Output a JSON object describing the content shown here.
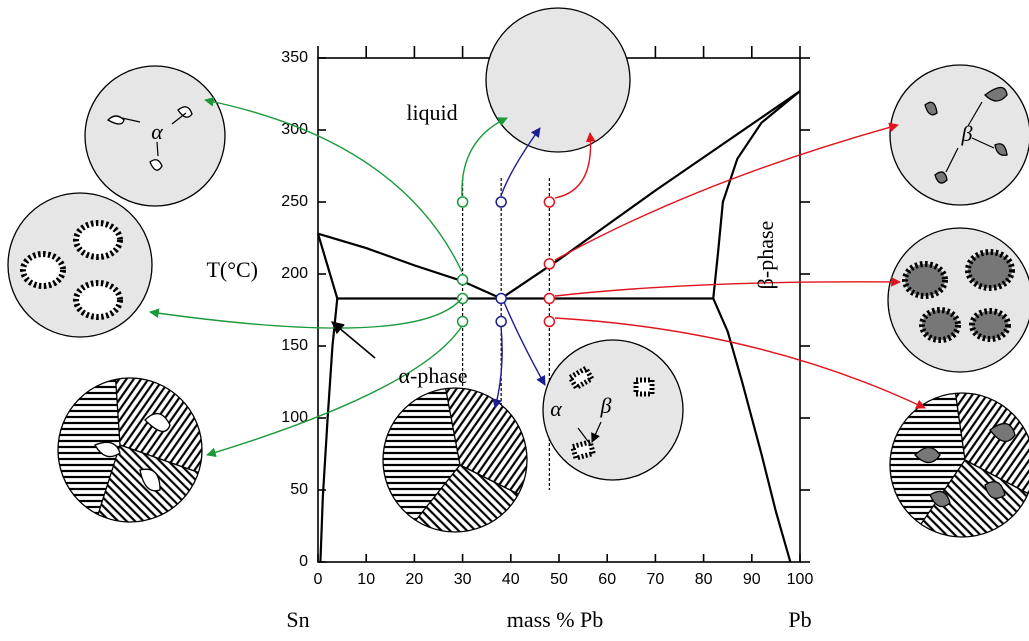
{
  "chart_data": {
    "type": "line",
    "xlim": [
      0,
      100
    ],
    "ylim": [
      0,
      350
    ],
    "xticks": [
      0,
      10,
      20,
      30,
      40,
      50,
      60,
      70,
      80,
      90,
      100
    ],
    "yticks": [
      0,
      50,
      100,
      150,
      200,
      250,
      300,
      350
    ],
    "y_label": "T(°C)",
    "x_label": "mass % Pb",
    "x_left_label": "Sn",
    "x_right_label": "Pb",
    "series": [
      {
        "color": "#000",
        "x": [
          0,
          10,
          20,
          30,
          38
        ],
        "values": [
          228,
          218,
          206,
          195,
          183
        ]
      },
      {
        "color": "#000",
        "x": [
          38,
          50,
          60,
          70,
          80,
          90,
          100
        ],
        "values": [
          183,
          210,
          234,
          258,
          281,
          304,
          327
        ]
      },
      {
        "color": "#000",
        "x": [
          100,
          92,
          87,
          84,
          83,
          82
        ],
        "values": [
          327,
          305,
          280,
          250,
          215,
          183
        ]
      },
      {
        "color": "#000",
        "x": [
          82,
          85,
          88,
          92,
          95,
          98
        ],
        "values": [
          183,
          160,
          125,
          75,
          35,
          0
        ]
      },
      {
        "color": "#000",
        "x": [
          0,
          4
        ],
        "values": [
          228,
          183
        ]
      },
      {
        "color": "#000",
        "x": [
          4,
          3,
          2,
          1,
          0.5
        ],
        "values": [
          183,
          150,
          100,
          45,
          0
        ]
      },
      {
        "color": "#000",
        "x": [
          4,
          82
        ],
        "values": [
          183,
          183
        ]
      }
    ],
    "markers": [
      {
        "color": "#1a9a3a",
        "x": 30,
        "values": [
          250,
          196,
          183,
          167
        ]
      },
      {
        "color": "#1c1f8f",
        "x": 38,
        "values": [
          250,
          183,
          167
        ]
      },
      {
        "color": "#e0141e",
        "x": 48,
        "values": [
          250,
          207,
          183,
          167
        ]
      }
    ],
    "annotations": [
      "liquid",
      "α-phase",
      "β-phase",
      "α",
      "α",
      "β",
      "β"
    ]
  }
}
